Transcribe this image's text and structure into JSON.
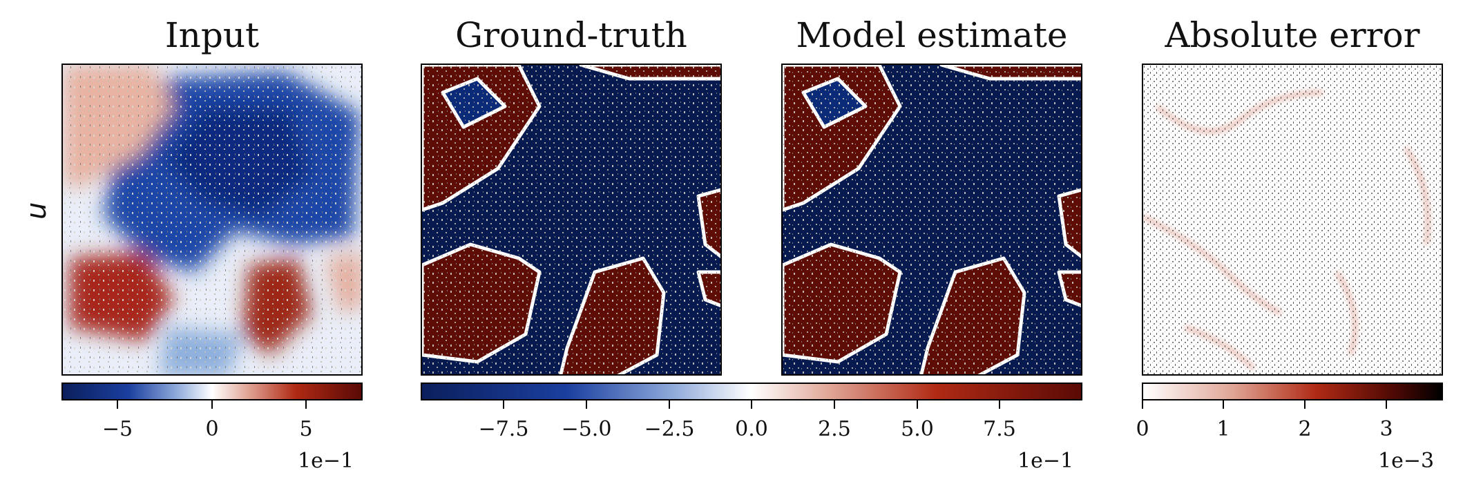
{
  "figure": {
    "row_label": "u",
    "panels": [
      {
        "title": "Input"
      },
      {
        "title": "Ground-truth"
      },
      {
        "title": "Model estimate"
      },
      {
        "title": "Absolute error"
      }
    ],
    "colorbars": [
      {
        "colormap": "diverging blue-white-red",
        "range": [
          -0.8,
          0.8
        ],
        "tick_labels": [
          "−5",
          "0",
          "5"
        ],
        "tick_values": [
          -0.5,
          0,
          0.5
        ],
        "scale_label": "1e−1"
      },
      {
        "colormap": "diverging blue-white-red",
        "range": [
          -1.0,
          1.0
        ],
        "tick_labels": [
          "−7.5",
          "−5.0",
          "−2.5",
          "0.0",
          "2.5",
          "5.0",
          "7.5"
        ],
        "tick_values": [
          -0.75,
          -0.5,
          -0.25,
          0,
          0.25,
          0.5,
          0.75
        ],
        "scale_label": "1e−1"
      },
      {
        "colormap": "sequential white-red-black",
        "range": [
          0,
          0.0037
        ],
        "tick_labels": [
          "0",
          "1",
          "2",
          "3"
        ],
        "tick_values": [
          0,
          0.001,
          0.002,
          0.003
        ],
        "scale_label": "1e−3"
      }
    ],
    "colors": {
      "dark_blue": "#0b1f5c",
      "blue": "#1b3f9f",
      "white": "#ffffff",
      "red": "#b02a14",
      "dark_red": "#5a0a06"
    }
  }
}
